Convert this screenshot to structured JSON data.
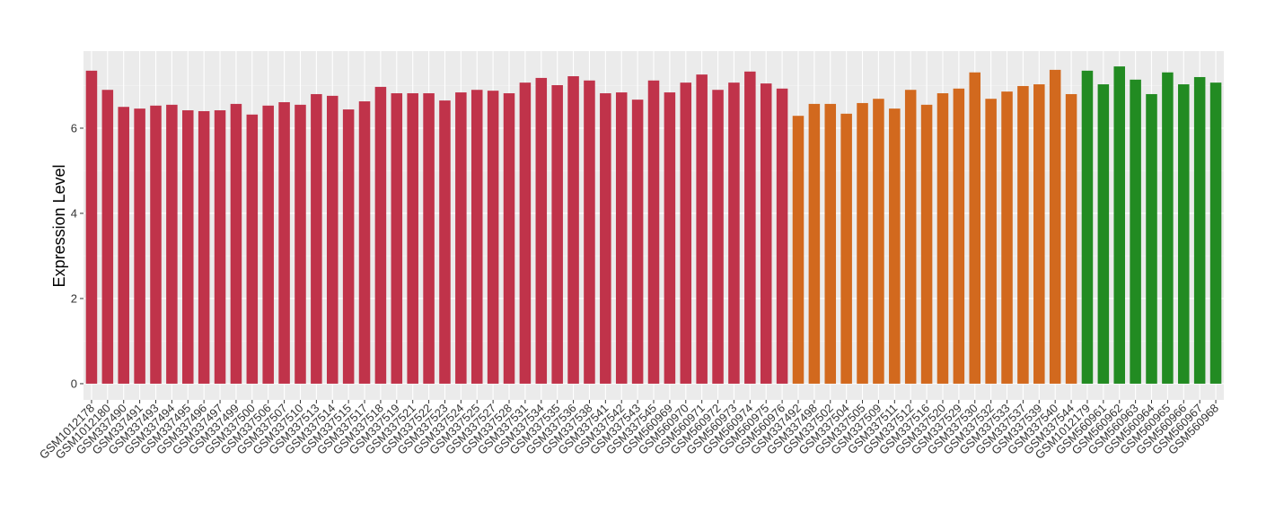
{
  "chart_data": {
    "type": "bar",
    "y_label": "Expression Level",
    "categories": [
      "GSM1012178",
      "GSM1012180",
      "GSM337490",
      "GSM337491",
      "GSM337493",
      "GSM337494",
      "GSM337495",
      "GSM337496",
      "GSM337497",
      "GSM337499",
      "GSM337500",
      "GSM337506",
      "GSM337507",
      "GSM337510",
      "GSM337513",
      "GSM337514",
      "GSM337515",
      "GSM337517",
      "GSM337518",
      "GSM337519",
      "GSM337521",
      "GSM337522",
      "GSM337523",
      "GSM337524",
      "GSM337525",
      "GSM337527",
      "GSM337528",
      "GSM337531",
      "GSM337534",
      "GSM337535",
      "GSM337536",
      "GSM337538",
      "GSM337541",
      "GSM337542",
      "GSM337543",
      "GSM337545",
      "GSM560969",
      "GSM560970",
      "GSM560971",
      "GSM560972",
      "GSM560973",
      "GSM560974",
      "GSM560975",
      "GSM560976",
      "GSM337492",
      "GSM337498",
      "GSM337502",
      "GSM337504",
      "GSM337505",
      "GSM337509",
      "GSM337511",
      "GSM337512",
      "GSM337516",
      "GSM337520",
      "GSM337529",
      "GSM337530",
      "GSM337532",
      "GSM337533",
      "GSM337537",
      "GSM337539",
      "GSM337540",
      "GSM337544",
      "GSM1012179",
      "GSM560961",
      "GSM560962",
      "GSM560963",
      "GSM560964",
      "GSM560965",
      "GSM560966",
      "GSM560967",
      "GSM560968"
    ],
    "values": [
      7.35,
      6.9,
      6.5,
      6.46,
      6.53,
      6.55,
      6.42,
      6.4,
      6.42,
      6.57,
      6.32,
      6.53,
      6.61,
      6.55,
      6.8,
      6.76,
      6.44,
      6.63,
      6.97,
      6.82,
      6.82,
      6.82,
      6.65,
      6.84,
      6.9,
      6.88,
      6.82,
      7.07,
      7.18,
      7.01,
      7.22,
      7.12,
      6.82,
      6.84,
      6.67,
      7.12,
      6.84,
      7.07,
      7.26,
      6.9,
      7.07,
      7.33,
      7.05,
      6.93,
      6.29,
      6.57,
      6.57,
      6.34,
      6.59,
      6.69,
      6.46,
      6.9,
      6.55,
      6.82,
      6.93,
      7.31,
      6.69,
      6.86,
      6.99,
      7.03,
      7.37,
      6.8,
      7.35,
      7.03,
      7.45,
      7.14,
      6.8,
      7.31,
      7.03,
      7.2,
      7.07
    ],
    "colors": [
      "#C0334A",
      "#C0334A",
      "#C0334A",
      "#C0334A",
      "#C0334A",
      "#C0334A",
      "#C0334A",
      "#C0334A",
      "#C0334A",
      "#C0334A",
      "#C0334A",
      "#C0334A",
      "#C0334A",
      "#C0334A",
      "#C0334A",
      "#C0334A",
      "#C0334A",
      "#C0334A",
      "#C0334A",
      "#C0334A",
      "#C0334A",
      "#C0334A",
      "#C0334A",
      "#C0334A",
      "#C0334A",
      "#C0334A",
      "#C0334A",
      "#C0334A",
      "#C0334A",
      "#C0334A",
      "#C0334A",
      "#C0334A",
      "#C0334A",
      "#C0334A",
      "#C0334A",
      "#C0334A",
      "#C0334A",
      "#C0334A",
      "#C0334A",
      "#C0334A",
      "#C0334A",
      "#C0334A",
      "#C0334A",
      "#C0334A",
      "#D2691E",
      "#D2691E",
      "#D2691E",
      "#D2691E",
      "#D2691E",
      "#D2691E",
      "#D2691E",
      "#D2691E",
      "#D2691E",
      "#D2691E",
      "#D2691E",
      "#D2691E",
      "#D2691E",
      "#D2691E",
      "#D2691E",
      "#D2691E",
      "#D2691E",
      "#D2691E",
      "#228B22",
      "#228B22",
      "#228B22",
      "#228B22",
      "#228B22",
      "#228B22",
      "#228B22",
      "#228B22",
      "#228B22"
    ],
    "ylim": [
      -0.38,
      7.81
    ],
    "yticks": [
      0,
      2,
      4,
      6
    ],
    "minor_yticks": [
      1,
      3,
      5,
      7
    ],
    "grid": true
  }
}
